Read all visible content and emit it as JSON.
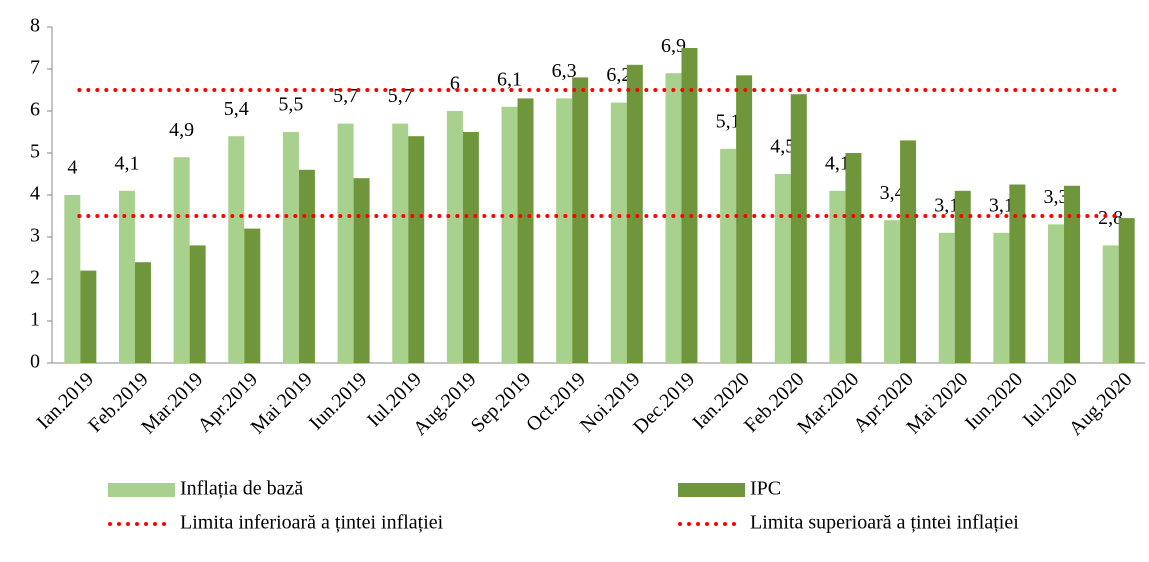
{
  "chart_data": {
    "type": "bar",
    "categories": [
      "Ian.2019",
      "Feb.2019",
      "Mar.2019",
      "Apr.2019",
      "Mai 2019",
      "Iun.2019",
      "Iul.2019",
      "Aug.2019",
      "Sep.2019",
      "Oct.2019",
      "Noi.2019",
      "Dec.2019",
      "Ian.2020",
      "Feb.2020",
      "Mar.2020",
      "Apr.2020",
      "Mai 2020",
      "Iun.2020",
      "Iul.2020",
      "Aug.2020"
    ],
    "series": [
      {
        "name": "Inflația de bază",
        "type": "bar",
        "color": "#a9d18e",
        "values": [
          4,
          4.1,
          4.9,
          5.4,
          5.5,
          5.7,
          5.7,
          6,
          6.1,
          6.3,
          6.2,
          6.9,
          5.1,
          4.5,
          4.1,
          3.4,
          3.1,
          3.1,
          3.3,
          2.8
        ],
        "value_labels": [
          "4",
          "4,1",
          "4,9",
          "5,4",
          "5,5",
          "5,7",
          "5,7",
          "6",
          "6,1",
          "6,3",
          "6,2",
          "6,9",
          "5,1",
          "4,5",
          "4,1",
          "3,4",
          "3,1",
          "3,1",
          "3,3",
          "2,8"
        ]
      },
      {
        "name": "IPC",
        "type": "bar",
        "color": "#70963c",
        "values": [
          2.2,
          2.4,
          2.8,
          3.2,
          4.6,
          4.4,
          5.4,
          5.5,
          6.3,
          6.8,
          7.1,
          7.5,
          6.85,
          6.4,
          5.0,
          5.3,
          4.1,
          4.25,
          4.22,
          3.45
        ]
      },
      {
        "name": "Limita inferioară a țintei inflației",
        "type": "line",
        "color": "#ff0000",
        "values": [
          3.5,
          3.5,
          3.5,
          3.5,
          3.5,
          3.5,
          3.5,
          3.5,
          3.5,
          3.5,
          3.5,
          3.5,
          3.5,
          3.5,
          3.5,
          3.5,
          3.5,
          3.5,
          3.5,
          3.5
        ]
      },
      {
        "name": "Limita superioară a țintei inflației",
        "type": "line",
        "color": "#ff0000",
        "values": [
          6.5,
          6.5,
          6.5,
          6.5,
          6.5,
          6.5,
          6.5,
          6.5,
          6.5,
          6.5,
          6.5,
          6.5,
          6.5,
          6.5,
          6.5,
          6.5,
          6.5,
          6.5,
          6.5,
          6.5
        ]
      }
    ],
    "ylim": [
      0,
      8
    ],
    "yticks": [
      0,
      1,
      2,
      3,
      4,
      5,
      6,
      7,
      8
    ],
    "grid": false,
    "legend": "bottom"
  }
}
